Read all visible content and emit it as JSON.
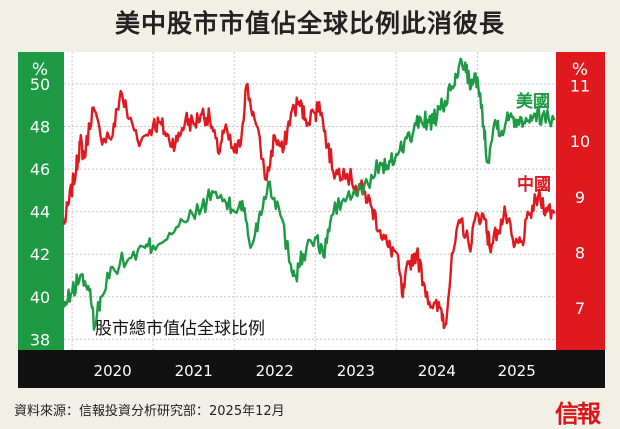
{
  "title": "美中股市市值佔全球比例此消彼長",
  "source": "資料來源：信報投資分析研究部：2025年12月",
  "logo": "信報",
  "colors": {
    "us": "#1e9a44",
    "cn": "#e0191f"
  },
  "chart_data": {
    "type": "line",
    "title": "美中股市市值佔全球比例此消彼長",
    "annotation": "股市總市值佔全球比例",
    "left_axis": {
      "unit": "%",
      "range": [
        37.5,
        51.5
      ],
      "ticks": [
        38,
        40,
        42,
        44,
        46,
        48,
        50
      ],
      "series": "美國"
    },
    "right_axis": {
      "unit": "%",
      "range": [
        6.25,
        11.6
      ],
      "ticks": [
        7,
        8,
        9,
        10,
        11
      ],
      "series": "中國"
    },
    "x_axis": {
      "range": [
        2019.9,
        2025.97
      ],
      "ticks": [
        2020,
        2021,
        2022,
        2023,
        2024,
        2025
      ]
    },
    "grid": true,
    "series": [
      {
        "name": "美國",
        "axis": "left",
        "x": [
          2019.9,
          2020.0,
          2020.1,
          2020.2,
          2020.28,
          2020.35,
          2020.5,
          2020.7,
          2020.9,
          2021.0,
          2021.2,
          2021.4,
          2021.6,
          2021.75,
          2021.9,
          2022.0,
          2022.1,
          2022.2,
          2022.3,
          2022.42,
          2022.55,
          2022.7,
          2022.76,
          2022.85,
          2023.0,
          2023.1,
          2023.2,
          2023.35,
          2023.5,
          2023.65,
          2023.8,
          2023.9,
          2024.0,
          2024.1,
          2024.2,
          2024.3,
          2024.4,
          2024.5,
          2024.6,
          2024.7,
          2024.77,
          2024.85,
          2024.92,
          2025.0,
          2025.08,
          2025.13,
          2025.22,
          2025.3,
          2025.4,
          2025.5,
          2025.6,
          2025.7,
          2025.8,
          2025.95
        ],
        "values": [
          39.5,
          40.2,
          41.0,
          40.5,
          38.6,
          40.0,
          41.4,
          41.8,
          42.3,
          42.4,
          43.0,
          43.5,
          44.2,
          44.9,
          44.4,
          44.0,
          44.5,
          42.3,
          43.6,
          45.4,
          44.2,
          41.5,
          41.0,
          42.0,
          42.8,
          41.9,
          43.8,
          44.6,
          44.8,
          45.3,
          46.3,
          46.0,
          46.7,
          47.3,
          47.6,
          48.4,
          48.2,
          48.4,
          49.2,
          49.8,
          50.8,
          51.0,
          49.8,
          50.3,
          48.0,
          46.3,
          48.3,
          47.8,
          48.5,
          48.3,
          48.4,
          48.6,
          48.5,
          48.3
        ]
      },
      {
        "name": "中國",
        "axis": "right",
        "x": [
          2019.9,
          2019.96,
          2020.05,
          2020.1,
          2020.15,
          2020.25,
          2020.35,
          2020.5,
          2020.6,
          2020.7,
          2020.85,
          2021.0,
          2021.1,
          2021.2,
          2021.3,
          2021.4,
          2021.5,
          2021.6,
          2021.7,
          2021.8,
          2021.88,
          2022.0,
          2022.07,
          2022.15,
          2022.25,
          2022.4,
          2022.5,
          2022.6,
          2022.7,
          2022.8,
          2022.88,
          2023.0,
          2023.05,
          2023.15,
          2023.25,
          2023.35,
          2023.5,
          2023.6,
          2023.7,
          2023.8,
          2023.9,
          2024.0,
          2024.08,
          2024.15,
          2024.25,
          2024.35,
          2024.45,
          2024.55,
          2024.6,
          2024.7,
          2024.8,
          2024.9,
          2025.0,
          2025.1,
          2025.15,
          2025.25,
          2025.35,
          2025.45,
          2025.55,
          2025.65,
          2025.75,
          2025.85,
          2025.95
        ],
        "values": [
          8.5,
          8.9,
          9.5,
          10.0,
          9.7,
          10.6,
          10.1,
          10.1,
          10.9,
          10.4,
          10.0,
          10.3,
          10.3,
          10.0,
          10.0,
          10.4,
          10.3,
          10.5,
          10.4,
          9.8,
          10.2,
          9.8,
          9.9,
          11.0,
          10.4,
          9.3,
          10.1,
          9.8,
          10.5,
          10.7,
          10.4,
          10.5,
          10.7,
          9.9,
          9.4,
          9.5,
          9.2,
          9.1,
          8.8,
          8.4,
          8.1,
          8.0,
          7.2,
          7.8,
          8.0,
          7.4,
          7.0,
          7.0,
          6.7,
          8.0,
          8.6,
          8.1,
          8.7,
          8.6,
          8.1,
          8.4,
          8.7,
          8.1,
          8.2,
          8.7,
          9.0,
          8.8,
          8.7
        ]
      }
    ]
  }
}
